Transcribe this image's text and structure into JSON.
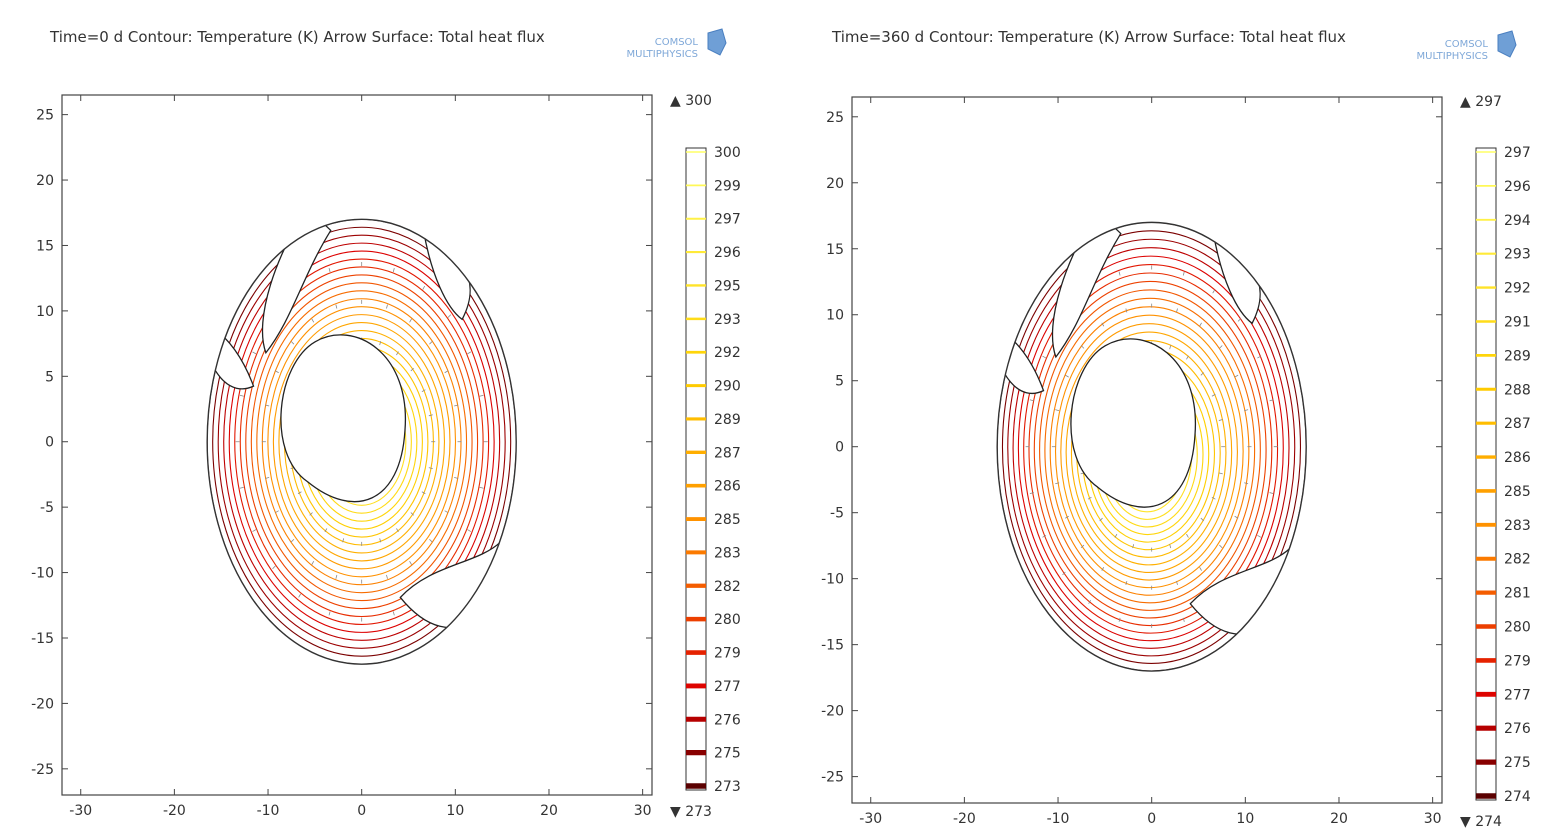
{
  "chart_data": [
    {
      "type": "contour",
      "title": "Time=0 d   Contour: Temperature (K)  Arrow Surface: Total heat flux",
      "brand": [
        "COMSOL",
        "MULTIPHYSICS"
      ],
      "xticks": [
        -30,
        -20,
        -10,
        0,
        10,
        20,
        30
      ],
      "yticks": [
        25,
        20,
        15,
        10,
        5,
        0,
        -5,
        -10,
        -15,
        -20,
        -25
      ],
      "xlim": [
        -32,
        31
      ],
      "ylim": [
        -27,
        26.5
      ],
      "colorbar_max": "300",
      "colorbar_min": "273",
      "colorbar_levels": [
        300,
        299,
        297,
        296,
        295,
        293,
        292,
        290,
        289,
        287,
        286,
        285,
        283,
        282,
        280,
        279,
        277,
        276,
        275,
        273
      ],
      "colors": {
        "warm": "#ffff66",
        "mid": "#ff8c00",
        "hot": "#dd0000",
        "cold": "#5a0000"
      }
    },
    {
      "type": "contour",
      "title": "Time=360 d   Contour: Temperature (K)  Arrow Surface: Total heat flux",
      "brand": [
        "COMSOL",
        "MULTIPHYSICS"
      ],
      "xticks": [
        -30,
        -20,
        -10,
        0,
        10,
        20,
        30
      ],
      "yticks": [
        25,
        20,
        15,
        10,
        5,
        0,
        -5,
        -10,
        -15,
        -20,
        -25
      ],
      "xlim": [
        -32,
        31
      ],
      "ylim": [
        -27,
        26.5
      ],
      "colorbar_max": "297",
      "colorbar_min": "274",
      "colorbar_levels": [
        297,
        296,
        294,
        293,
        292,
        291,
        289,
        288,
        287,
        286,
        285,
        283,
        282,
        281,
        280,
        279,
        277,
        276,
        275,
        274
      ],
      "colors": {
        "warm": "#ffff66",
        "mid": "#ff8c00",
        "hot": "#dd0000",
        "cold": "#5a0000"
      }
    }
  ]
}
